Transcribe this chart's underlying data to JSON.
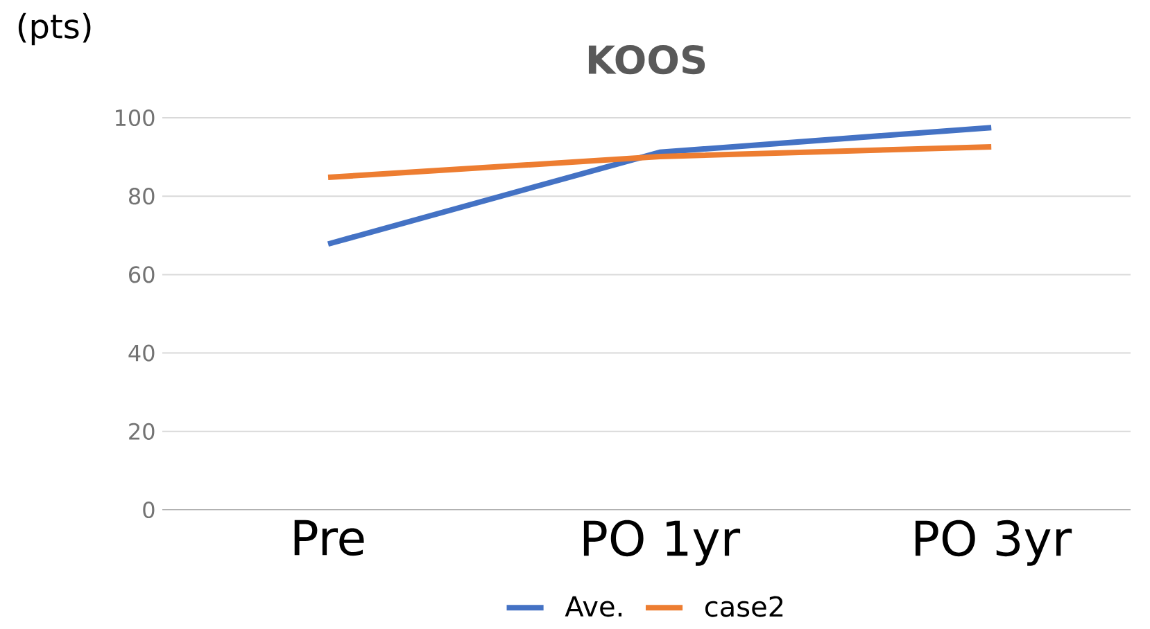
{
  "chart_data": {
    "type": "line",
    "title": "KOOS",
    "ylabel": "(pts)",
    "categories": [
      "Pre",
      "PO 1yr",
      "PO 3yr"
    ],
    "series": [
      {
        "name": "Ave.",
        "color": "#4472c4",
        "values": [
          67.8,
          91.2,
          97.5
        ]
      },
      {
        "name": "case2",
        "color": "#ed7d31",
        "values": [
          84.8,
          90.1,
          92.6
        ]
      }
    ],
    "ylim": [
      0,
      100
    ],
    "yticks": [
      0,
      20,
      40,
      60,
      80,
      100
    ],
    "grid": "y",
    "legend": "bottom",
    "marker": "none",
    "line_style": "solid"
  }
}
